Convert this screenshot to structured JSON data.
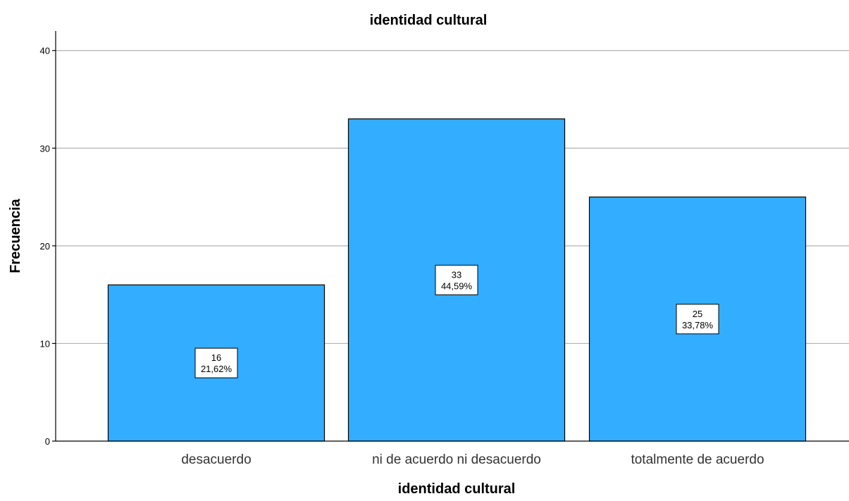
{
  "chart_data": {
    "type": "bar",
    "title": "identidad cultural",
    "xlabel": "identidad cultural",
    "ylabel": "Frecuencia",
    "categories": [
      "desacuerdo",
      "ni de acuerdo ni desacuerdo",
      "totalmente de acuerdo"
    ],
    "values": [
      16,
      33,
      25
    ],
    "data_labels": [
      {
        "count": "16",
        "percent": "21,62%"
      },
      {
        "count": "33",
        "percent": "44,59%"
      },
      {
        "count": "25",
        "percent": "33,78%"
      }
    ],
    "ylim": [
      0,
      42
    ],
    "yticks": [
      0,
      10,
      20,
      30,
      40
    ],
    "grid": true,
    "legend": "none",
    "colors": {
      "bar_fill": "#33adff",
      "bar_stroke": "#000000",
      "grid": "#b3b3b3",
      "axis": "#000000"
    }
  }
}
